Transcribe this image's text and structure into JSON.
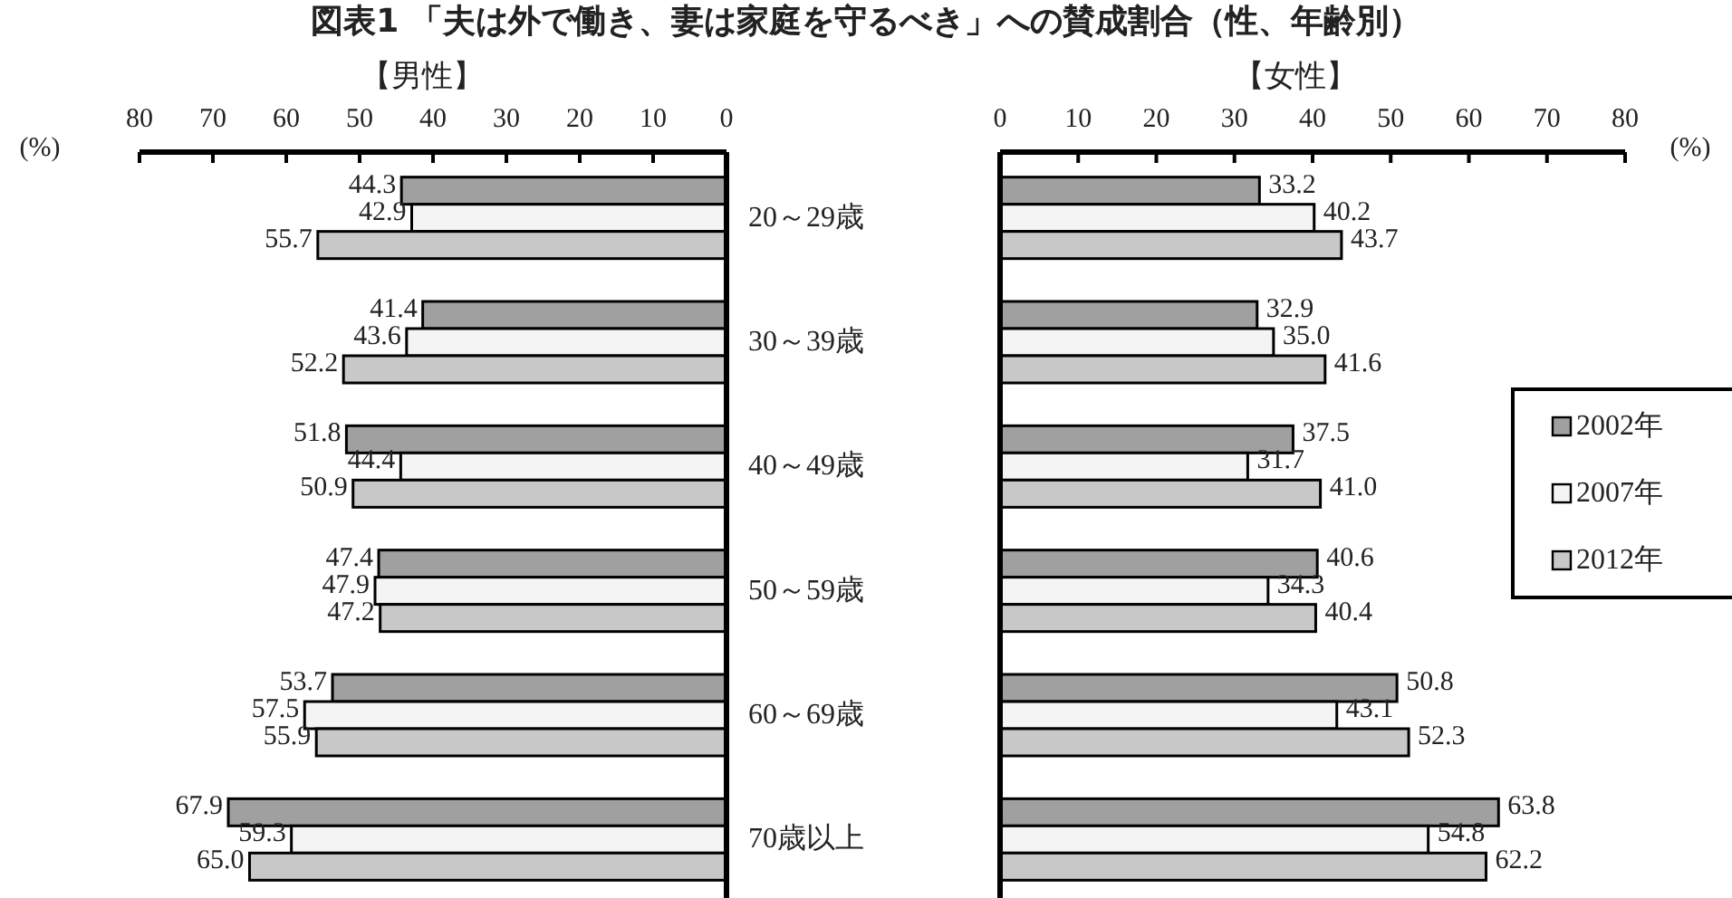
{
  "chart_data": [
    {
      "type": "bar",
      "orientation": "horizontal",
      "title": "図表1 「夫は外で働き、妻は家庭を守るべき」への賛成割合（性、年齢別）",
      "subtitle": "【男性】",
      "xlabel": "(%)",
      "categories": [
        "20～29歳",
        "30～39歳",
        "40～49歳",
        "50～59歳",
        "60～69歳",
        "70歳以上"
      ],
      "xlim": [
        80,
        0
      ],
      "xticks": [
        80,
        70,
        60,
        50,
        40,
        30,
        20,
        10,
        0
      ],
      "series": [
        {
          "color": "#a0a0a0",
          "values": [
            44.3,
            41.4,
            51.8,
            47.4,
            53.7,
            67.9
          ],
          "value_labels": [
            "44.3",
            "41.4",
            "51.8",
            "47.4",
            "53.7",
            "67.9"
          ]
        },
        {
          "color": "#f4f4f4",
          "values": [
            42.9,
            43.6,
            44.4,
            47.9,
            57.5,
            59.3
          ],
          "value_labels": [
            "42.9",
            "43.6",
            "44.4",
            "47.9",
            "57.5",
            "59.3"
          ]
        },
        {
          "color": "#c8c8c8",
          "values": [
            55.7,
            52.2,
            50.9,
            47.2,
            55.9,
            65.0
          ],
          "value_labels": [
            "55.7",
            "52.2",
            "50.9",
            "47.2",
            "55.9",
            "65.0"
          ]
        }
      ]
    },
    {
      "type": "bar",
      "orientation": "horizontal",
      "title": "【女性】",
      "xlabel": "(%)",
      "categories": [
        null,
        null,
        null,
        null,
        null,
        null
      ],
      "xlim": [
        0,
        80
      ],
      "xticks": [
        0,
        10,
        20,
        30,
        40,
        50,
        60,
        70,
        80
      ],
      "tick_labels": "x",
      "legend": "right",
      "series": [
        {
          "name": "2002年",
          "color": "#a0a0a0",
          "values": [
            33.2,
            32.9,
            37.5,
            40.6,
            50.8,
            63.8
          ],
          "value_labels": [
            "33.2",
            "32.9",
            "37.5",
            "40.6",
            "50.8",
            "63.8"
          ]
        },
        {
          "name": "2007年",
          "color": "#f4f4f4",
          "values": [
            40.2,
            35.0,
            31.7,
            34.3,
            43.1,
            54.8
          ],
          "value_labels": [
            "40.2",
            "35.0",
            "31.7",
            "34.3",
            "43.1",
            "54.8"
          ]
        },
        {
          "name": "2012年",
          "color": "#c8c8c8",
          "values": [
            43.7,
            41.6,
            41.0,
            40.4,
            52.3,
            62.2
          ],
          "value_labels": [
            "43.7",
            "41.6",
            "41.0",
            "40.4",
            "52.3",
            "62.2"
          ]
        }
      ]
    }
  ]
}
